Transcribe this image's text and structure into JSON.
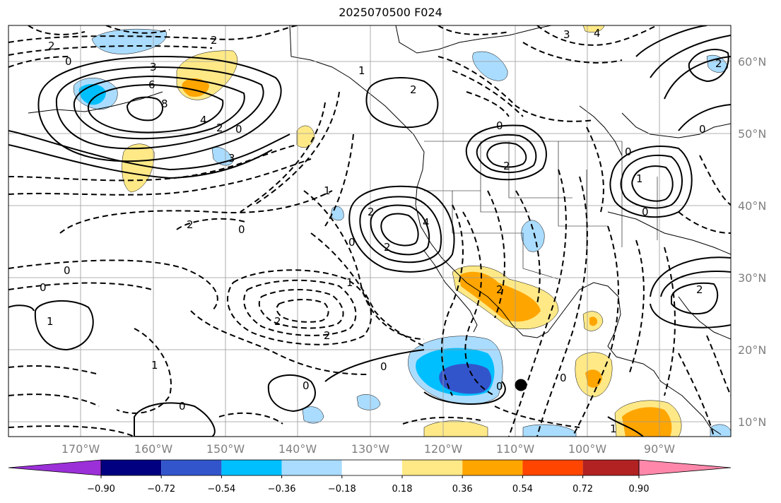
{
  "title": "2025070500 F024",
  "latitude_labels": [
    "60°N",
    "50°N",
    "40°N",
    "30°N",
    "20°N",
    "10°N"
  ],
  "longitude_labels": [
    "170°W",
    "160°W",
    "150°W",
    "140°W",
    "130°W",
    "120°W",
    "110°W",
    "100°W",
    "90°W"
  ],
  "colorbar": {
    "tick_labels": [
      "−0.90",
      "−0.72",
      "−0.54",
      "−0.36",
      "−0.18",
      "0.18",
      "0.36",
      "0.54",
      "0.72",
      "0.90"
    ],
    "colors": [
      "#9b30d8",
      "#000080",
      "#3355cc",
      "#00bfff",
      "#aadcff",
      "#ffffff",
      "#ffe987",
      "#ffa500",
      "#ff4500",
      "#b22222",
      "#ff88aa"
    ]
  },
  "contour_labels": [
    "0",
    "2",
    "3",
    "6",
    "8",
    "4",
    "2",
    "0",
    "3",
    "0",
    "1",
    "2",
    "2",
    "3",
    "4",
    "2",
    "1",
    "0",
    "2",
    "4",
    "2",
    "0",
    "2",
    "0",
    "0",
    "0",
    "1",
    "2",
    "0",
    "1",
    "2",
    "1",
    "2",
    "0",
    "1",
    "0",
    "0",
    "0",
    "1",
    "0",
    "2",
    "2",
    "0"
  ],
  "marker": "storm-center-dot"
}
